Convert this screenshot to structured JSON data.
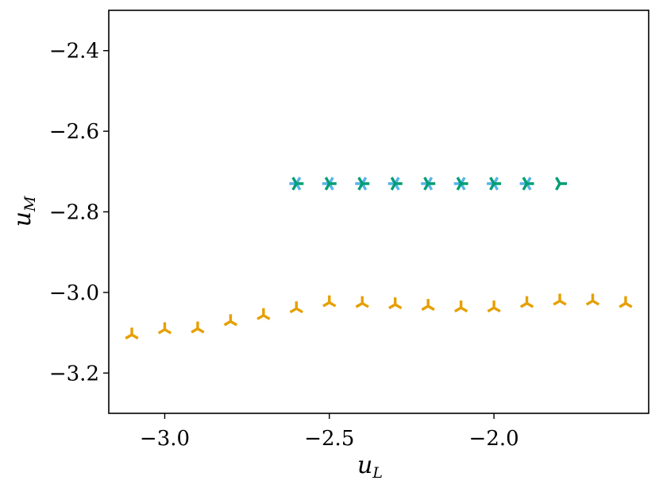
{
  "chart_data": {
    "type": "scatter",
    "title": "",
    "xlabel": "u",
    "xlabel_sub": "L",
    "ylabel": "u",
    "ylabel_sub": "M",
    "xlim": [
      -3.17,
      -1.53
    ],
    "ylim": [
      -3.3,
      -2.3
    ],
    "xticks": [
      -3.0,
      -2.5,
      -2.0
    ],
    "xtick_labels": [
      "−3.0",
      "−2.5",
      "−2.0"
    ],
    "yticks": [
      -2.4,
      -2.6,
      -2.8,
      -3.0,
      -3.2
    ],
    "ytick_labels": [
      "−2.4",
      "−2.6",
      "−2.8",
      "−3.0",
      "−3.2"
    ],
    "grid": false,
    "series": [
      {
        "color": "#E69F00",
        "marker": "tri_down",
        "x": [
          -3.1,
          -3.0,
          -2.9,
          -2.8,
          -2.7,
          -2.6,
          -2.5,
          -2.4,
          -2.3,
          -2.2,
          -2.1,
          -2.0,
          -1.9,
          -1.8,
          -1.7,
          -1.6
        ],
        "y": [
          -3.105,
          -3.092,
          -3.09,
          -3.072,
          -3.057,
          -3.04,
          -3.025,
          -3.027,
          -3.03,
          -3.034,
          -3.038,
          -3.038,
          -3.027,
          -3.021,
          -3.021,
          -3.027
        ]
      },
      {
        "color": "#56B4E9",
        "marker": "tri_right",
        "x": [
          -2.6,
          -2.5,
          -2.4,
          -2.3,
          -2.2,
          -2.1,
          -2.0,
          -1.9
        ],
        "y": [
          -2.73,
          -2.73,
          -2.73,
          -2.73,
          -2.73,
          -2.73,
          -2.73,
          -2.73
        ]
      },
      {
        "color": "#009E73",
        "marker": "tri_left",
        "x": [
          -2.6,
          -2.5,
          -2.4,
          -2.3,
          -2.2,
          -2.1,
          -2.0,
          -1.9,
          -1.8
        ],
        "y": [
          -2.73,
          -2.73,
          -2.73,
          -2.73,
          -2.73,
          -2.73,
          -2.73,
          -2.73,
          -2.73
        ]
      }
    ]
  }
}
